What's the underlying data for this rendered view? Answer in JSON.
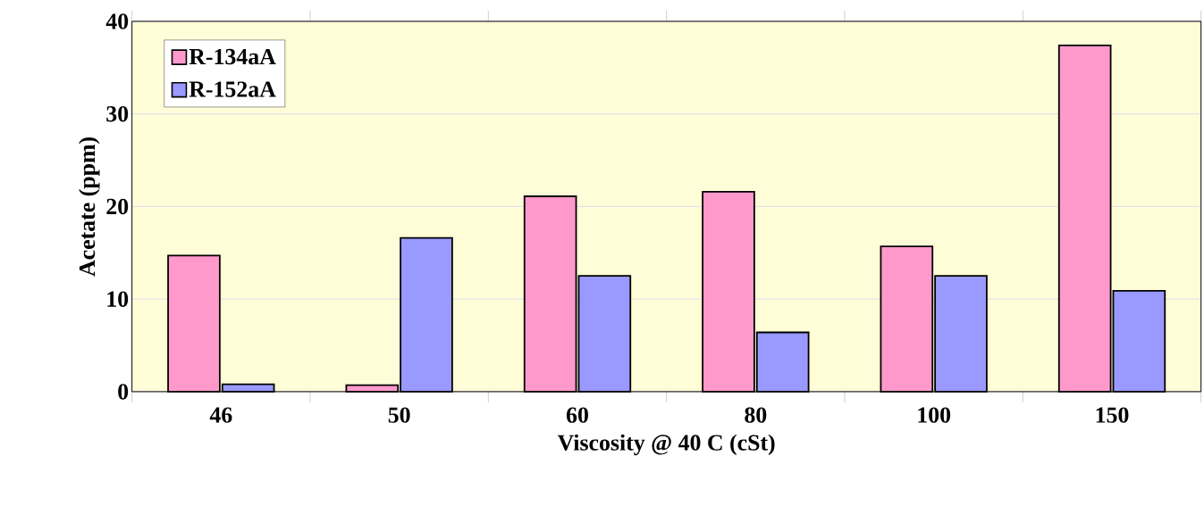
{
  "chart_data": {
    "type": "bar",
    "xlabel": "Viscosity @ 40 C (cSt)",
    "ylabel": "Acetate (ppm)",
    "categories": [
      "46",
      "50",
      "60",
      "80",
      "100",
      "150"
    ],
    "series": [
      {
        "name": "R-134aA",
        "color": "#ff99cc",
        "values": [
          14.7,
          0.7,
          21.1,
          21.6,
          15.7,
          37.4
        ]
      },
      {
        "name": "R-152aA",
        "color": "#9999ff",
        "values": [
          0.8,
          16.6,
          12.5,
          6.4,
          12.5,
          10.9
        ]
      }
    ],
    "ylim": [
      0,
      40
    ],
    "yticks": [
      0,
      10,
      20,
      30,
      40
    ],
    "grid": "y",
    "legend": "top left"
  }
}
